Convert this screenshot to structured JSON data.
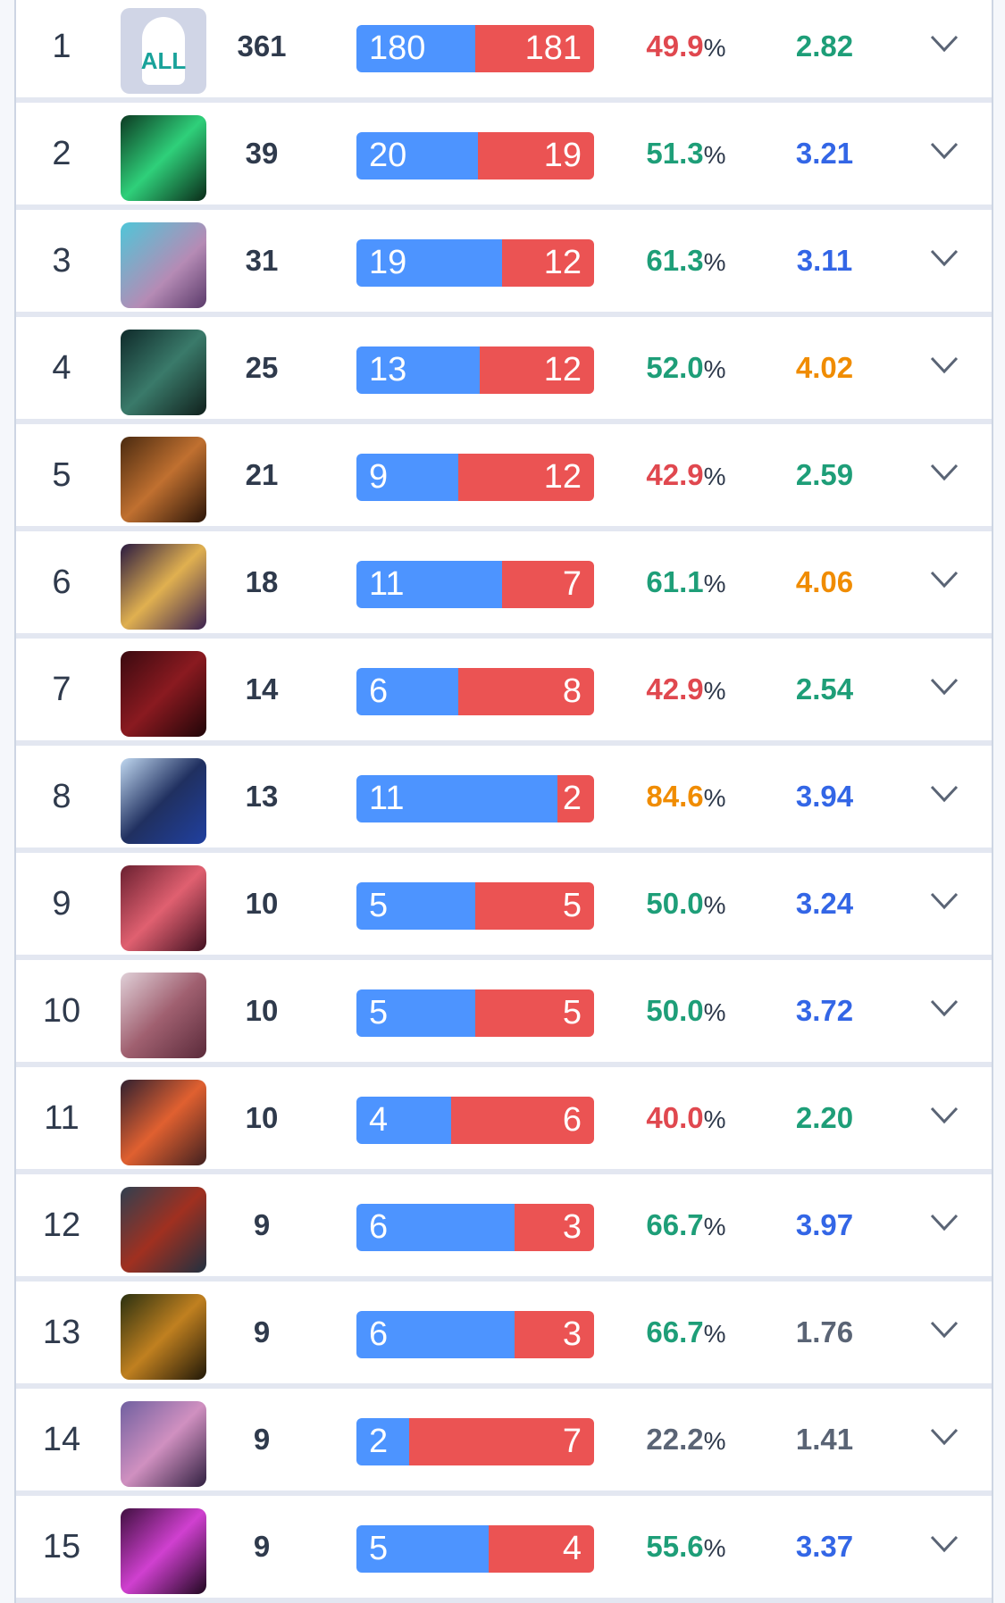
{
  "colors": {
    "win": "#4d94ff",
    "loss": "#eb5353",
    "green": "#1e9e78",
    "blue": "#3366e6",
    "orange": "#f08c00",
    "red": "#e0484f",
    "gray": "#5a6475"
  },
  "rows": [
    {
      "rank": "1",
      "icon": "all-champions-icon",
      "icon_label": "ALL",
      "games": "361",
      "wins": "180",
      "losses": "181",
      "winrate": "49.9",
      "winrate_color": "red",
      "kda": "2.82",
      "kda_color": "green"
    },
    {
      "rank": "2",
      "icon": "champion-thresh-icon",
      "games": "39",
      "wins": "20",
      "losses": "19",
      "winrate": "51.3",
      "winrate_color": "green",
      "kda": "3.21",
      "kda_color": "blue"
    },
    {
      "rank": "3",
      "icon": "champion-icon",
      "games": "31",
      "wins": "19",
      "losses": "12",
      "winrate": "61.3",
      "winrate_color": "green",
      "kda": "3.11",
      "kda_color": "blue"
    },
    {
      "rank": "4",
      "icon": "champion-icon",
      "games": "25",
      "wins": "13",
      "losses": "12",
      "winrate": "52.0",
      "winrate_color": "green",
      "kda": "4.02",
      "kda_color": "orange"
    },
    {
      "rank": "5",
      "icon": "champion-icon",
      "games": "21",
      "wins": "9",
      "losses": "12",
      "winrate": "42.9",
      "winrate_color": "red",
      "kda": "2.59",
      "kda_color": "green"
    },
    {
      "rank": "6",
      "icon": "champion-icon",
      "games": "18",
      "wins": "11",
      "losses": "7",
      "winrate": "61.1",
      "winrate_color": "green",
      "kda": "4.06",
      "kda_color": "orange"
    },
    {
      "rank": "7",
      "icon": "champion-icon",
      "games": "14",
      "wins": "6",
      "losses": "8",
      "winrate": "42.9",
      "winrate_color": "red",
      "kda": "2.54",
      "kda_color": "green"
    },
    {
      "rank": "8",
      "icon": "champion-icon",
      "games": "13",
      "wins": "11",
      "losses": "2",
      "winrate": "84.6",
      "winrate_color": "orange",
      "kda": "3.94",
      "kda_color": "blue"
    },
    {
      "rank": "9",
      "icon": "champion-icon",
      "games": "10",
      "wins": "5",
      "losses": "5",
      "winrate": "50.0",
      "winrate_color": "green",
      "kda": "3.24",
      "kda_color": "blue"
    },
    {
      "rank": "10",
      "icon": "champion-icon",
      "games": "10",
      "wins": "5",
      "losses": "5",
      "winrate": "50.0",
      "winrate_color": "green",
      "kda": "3.72",
      "kda_color": "blue"
    },
    {
      "rank": "11",
      "icon": "champion-icon",
      "games": "10",
      "wins": "4",
      "losses": "6",
      "winrate": "40.0",
      "winrate_color": "red",
      "kda": "2.20",
      "kda_color": "green"
    },
    {
      "rank": "12",
      "icon": "champion-icon",
      "games": "9",
      "wins": "6",
      "losses": "3",
      "winrate": "66.7",
      "winrate_color": "green",
      "kda": "3.97",
      "kda_color": "blue"
    },
    {
      "rank": "13",
      "icon": "champion-icon",
      "games": "9",
      "wins": "6",
      "losses": "3",
      "winrate": "66.7",
      "winrate_color": "green",
      "kda": "1.76",
      "kda_color": "gray"
    },
    {
      "rank": "14",
      "icon": "champion-icon",
      "games": "9",
      "wins": "2",
      "losses": "7",
      "winrate": "22.2",
      "winrate_color": "gray",
      "kda": "1.41",
      "kda_color": "gray"
    },
    {
      "rank": "15",
      "icon": "champion-icon",
      "games": "9",
      "wins": "5",
      "losses": "4",
      "winrate": "55.6",
      "winrate_color": "green",
      "kda": "3.37",
      "kda_color": "blue"
    }
  ],
  "percent_sign": "%"
}
